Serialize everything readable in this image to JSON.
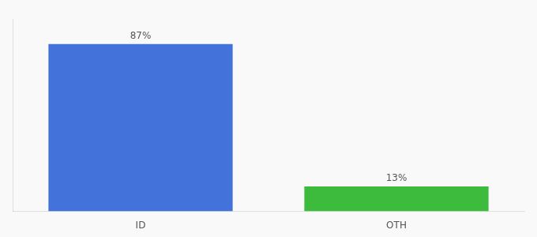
{
  "chart_data": {
    "type": "bar",
    "categories": [
      "ID",
      "OTH"
    ],
    "values": [
      87,
      13
    ],
    "value_labels": [
      "87%",
      "13%"
    ],
    "colors": [
      "#4472db",
      "#3dbb3d"
    ],
    "ylim": [
      0,
      100
    ],
    "grid": false,
    "data_labels": true,
    "tick_labels": "x"
  }
}
